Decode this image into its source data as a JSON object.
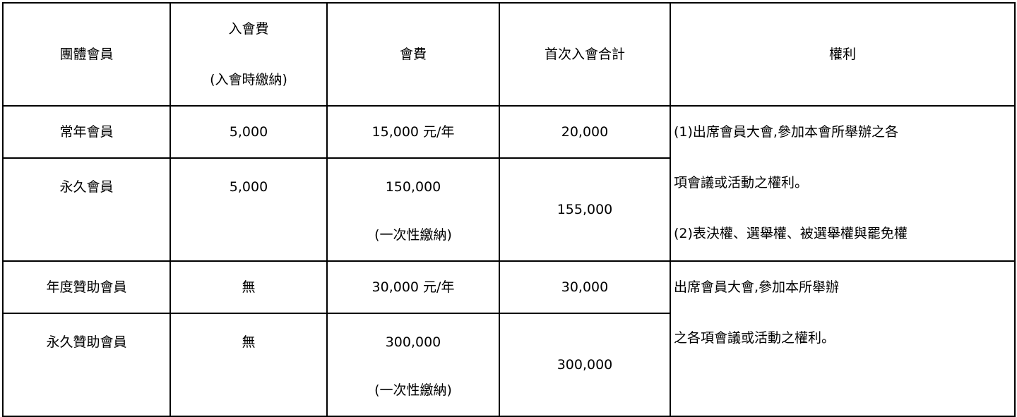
{
  "headers": {
    "group_member": "團體會員",
    "entry_fee": "入會費",
    "entry_fee_note": "(入會時繳納)",
    "fee": "會費",
    "first_total": "首次入會合計",
    "rights": "權利"
  },
  "rows": [
    {
      "type": "常年會員",
      "entry_fee": "5,000",
      "fee": "15,000 元/年",
      "fee_note": ""
    },
    {
      "type": "永久會員",
      "entry_fee": "5,000",
      "fee": "150,000",
      "fee_note": "(一次性繳納)"
    },
    {
      "type": "年度贊助會員",
      "entry_fee": "無",
      "fee": "30,000 元/年",
      "fee_note": ""
    },
    {
      "type": "永久贊助會員",
      "entry_fee": "無",
      "fee": "300,000",
      "fee_note": "(一次性繳納)"
    }
  ],
  "totals": [
    "20,000",
    "155,000",
    "30,000",
    "300,000"
  ],
  "rights": [
    [
      "(1)出席會員大會,參加本會所舉辦之各",
      "項會議或活動之權利。",
      "(2)表決權、選舉權、被選舉權與罷免權"
    ],
    [
      "出席會員大會,參加本所舉辦",
      "之各項會議或活動之權利。"
    ]
  ]
}
